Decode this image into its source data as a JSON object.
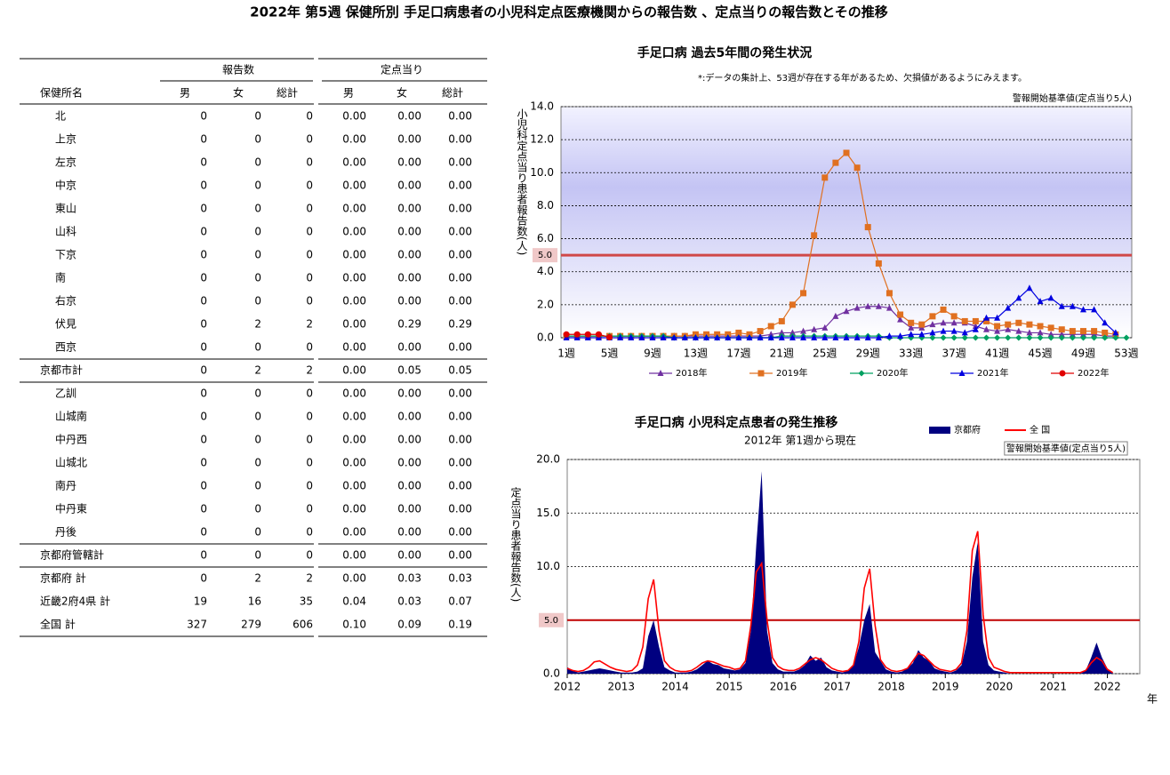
{
  "title": "2022年 第5週 保健所別 手足口病患者の小児科定点医療機関からの報告数 、定点当りの報告数とその推移",
  "table": {
    "header_groups": [
      "報告数",
      "定点当り"
    ],
    "header": [
      "保健所名",
      "男",
      "女",
      "総計",
      "男",
      "女",
      "総計"
    ],
    "city": {
      "rows": [
        [
          "北",
          "0",
          "0",
          "0",
          "0.00",
          "0.00",
          "0.00"
        ],
        [
          "上京",
          "0",
          "0",
          "0",
          "0.00",
          "0.00",
          "0.00"
        ],
        [
          "左京",
          "0",
          "0",
          "0",
          "0.00",
          "0.00",
          "0.00"
        ],
        [
          "中京",
          "0",
          "0",
          "0",
          "0.00",
          "0.00",
          "0.00"
        ],
        [
          "東山",
          "0",
          "0",
          "0",
          "0.00",
          "0.00",
          "0.00"
        ],
        [
          "山科",
          "0",
          "0",
          "0",
          "0.00",
          "0.00",
          "0.00"
        ],
        [
          "下京",
          "0",
          "0",
          "0",
          "0.00",
          "0.00",
          "0.00"
        ],
        [
          "南",
          "0",
          "0",
          "0",
          "0.00",
          "0.00",
          "0.00"
        ],
        [
          "右京",
          "0",
          "0",
          "0",
          "0.00",
          "0.00",
          "0.00"
        ],
        [
          "伏見",
          "0",
          "2",
          "2",
          "0.00",
          "0.29",
          "0.29"
        ],
        [
          "西京",
          "0",
          "0",
          "0",
          "0.00",
          "0.00",
          "0.00"
        ]
      ],
      "total": [
        "京都市計",
        "0",
        "2",
        "2",
        "0.00",
        "0.05",
        "0.05"
      ]
    },
    "prefecture": {
      "rows": [
        [
          "乙訓",
          "0",
          "0",
          "0",
          "0.00",
          "0.00",
          "0.00"
        ],
        [
          "山城南",
          "0",
          "0",
          "0",
          "0.00",
          "0.00",
          "0.00"
        ],
        [
          "中丹西",
          "0",
          "0",
          "0",
          "0.00",
          "0.00",
          "0.00"
        ],
        [
          "山城北",
          "0",
          "0",
          "0",
          "0.00",
          "0.00",
          "0.00"
        ],
        [
          "南丹",
          "0",
          "0",
          "0",
          "0.00",
          "0.00",
          "0.00"
        ],
        [
          "中丹東",
          "0",
          "0",
          "0",
          "0.00",
          "0.00",
          "0.00"
        ],
        [
          "丹後",
          "0",
          "0",
          "0",
          "0.00",
          "0.00",
          "0.00"
        ]
      ],
      "total": [
        "京都府管轄計",
        "0",
        "0",
        "0",
        "0.00",
        "0.00",
        "0.00"
      ]
    },
    "summary": [
      [
        "京都府 計",
        "0",
        "2",
        "2",
        "0.00",
        "0.03",
        "0.03"
      ],
      [
        "近畿2府4県 計",
        "19",
        "16",
        "35",
        "0.04",
        "0.03",
        "0.07"
      ],
      [
        "全国 計",
        "327",
        "279",
        "606",
        "0.10",
        "0.09",
        "0.19"
      ]
    ]
  },
  "chart_data": [
    {
      "type": "line",
      "title": "手足口病 過去5年間の発生状況",
      "note": "*:データの集計上、53週が存在する年があるため、欠損値があるようにみえます。",
      "threshold_note": "警報開始基準値(定点当り5人)",
      "threshold": {
        "value": 5,
        "label": "5.0"
      },
      "y_label": "小児科定点当り患者報告数(人)",
      "categories": [
        "1週",
        null,
        null,
        null,
        "5週",
        null,
        null,
        null,
        "9週",
        null,
        null,
        null,
        "13週",
        null,
        null,
        null,
        "17週",
        null,
        null,
        null,
        "21週",
        null,
        null,
        null,
        "25週",
        null,
        null,
        null,
        "29週",
        null,
        null,
        null,
        "33週",
        null,
        null,
        null,
        "37週",
        null,
        null,
        null,
        "41週",
        null,
        null,
        null,
        "45週",
        null,
        null,
        null,
        "49週",
        null,
        null,
        null,
        "53週"
      ],
      "ylim": [
        0,
        14
      ],
      "yticks": [
        {
          "value": 0,
          "label": "0.0"
        },
        {
          "value": 2,
          "label": "2.0"
        },
        {
          "value": 4,
          "label": "4.0"
        },
        {
          "value": 6,
          "label": "6.0"
        },
        {
          "value": 8,
          "label": "8.0"
        },
        {
          "value": 10,
          "label": "10.0"
        },
        {
          "value": 12,
          "label": "12.0"
        },
        {
          "value": 14,
          "label": "14.0"
        }
      ],
      "grid": true,
      "legend": "bottom",
      "series": [
        {
          "name": "2018年",
          "color": "#7030a0",
          "marker": "triangle",
          "values": [
            0.1,
            0.1,
            0.1,
            0.1,
            0.1,
            0.1,
            0.1,
            0.1,
            0.1,
            0.1,
            0.1,
            0.1,
            0.1,
            0.1,
            0.1,
            0.1,
            0.1,
            0.1,
            0.1,
            0.2,
            0.3,
            0.3,
            0.4,
            0.5,
            0.6,
            1.3,
            1.6,
            1.8,
            1.9,
            1.9,
            1.8,
            1.1,
            0.6,
            0.6,
            0.8,
            0.9,
            0.9,
            0.9,
            0.7,
            0.5,
            0.4,
            0.5,
            0.4,
            0.3,
            0.3,
            0.2,
            0.2,
            0.2,
            0.2,
            0.2,
            0.1,
            0.1,
            null
          ]
        },
        {
          "name": "2019年",
          "color": "#e07020",
          "marker": "square",
          "values": [
            0.1,
            0.1,
            0.1,
            0.1,
            0.1,
            0.1,
            0.1,
            0.1,
            0.1,
            0.1,
            0.1,
            0.1,
            0.2,
            0.2,
            0.2,
            0.2,
            0.3,
            0.2,
            0.4,
            0.7,
            1.0,
            2.0,
            2.7,
            6.2,
            9.7,
            10.6,
            11.2,
            10.3,
            6.7,
            4.5,
            2.7,
            1.4,
            0.9,
            0.8,
            1.3,
            1.7,
            1.3,
            1.0,
            1.0,
            1.0,
            0.7,
            0.8,
            0.9,
            0.8,
            0.7,
            0.6,
            0.5,
            0.4,
            0.4,
            0.4,
            0.3,
            0.2,
            null
          ]
        },
        {
          "name": "2020年",
          "color": "#00a060",
          "marker": "diamond",
          "values": [
            0.1,
            0.1,
            0.1,
            0.1,
            0.1,
            0.1,
            0.1,
            0.1,
            0.1,
            0.1,
            0,
            0,
            0,
            0,
            0,
            0,
            0,
            0,
            0,
            0,
            0.1,
            0.1,
            0.1,
            0.1,
            0.1,
            0.1,
            0.1,
            0.1,
            0.1,
            0.1,
            0,
            0,
            0,
            0,
            0,
            0,
            0,
            0,
            0,
            0,
            0,
            0,
            0,
            0,
            0,
            0,
            0,
            0,
            0,
            0,
            0,
            0,
            0
          ]
        },
        {
          "name": "2021年",
          "color": "#0000e0",
          "marker": "triangle",
          "values": [
            0,
            0,
            0,
            0,
            0,
            0,
            0,
            0,
            0,
            0,
            0,
            0,
            0,
            0,
            0,
            0,
            0,
            0,
            0,
            0,
            0,
            0,
            0,
            0,
            0,
            0,
            0,
            0,
            0,
            0,
            0.1,
            0.1,
            0.2,
            0.2,
            0.3,
            0.4,
            0.4,
            0.3,
            0.5,
            1.2,
            1.2,
            1.8,
            2.4,
            3.0,
            2.2,
            2.4,
            1.9,
            1.9,
            1.7,
            1.7,
            0.9,
            0.3,
            null
          ]
        },
        {
          "name": "2022年",
          "color": "#e00000",
          "marker": "circle",
          "values": [
            0.2,
            0.2,
            0.2,
            0.2,
            0.03,
            null,
            null,
            null,
            null,
            null,
            null,
            null,
            null,
            null,
            null,
            null,
            null,
            null,
            null,
            null,
            null,
            null,
            null,
            null,
            null,
            null,
            null,
            null,
            null,
            null,
            null,
            null,
            null,
            null,
            null,
            null,
            null,
            null,
            null,
            null,
            null,
            null,
            null,
            null,
            null,
            null,
            null,
            null,
            null,
            null,
            null,
            null,
            null
          ]
        }
      ]
    },
    {
      "type": "line",
      "title": "手足口病 小児科定点患者の発生推移",
      "subtitle": "2012年 第1週から現在",
      "threshold_note": "警報開始基準値(定点当り5人)",
      "threshold": {
        "value": 5,
        "label": "5.0"
      },
      "y_label": "定点当り患者報告数(人)",
      "x_label": "年",
      "x": [
        2012,
        2012.1,
        2012.2,
        2012.3,
        2012.4,
        2012.5,
        2012.6,
        2012.7,
        2012.8,
        2012.9,
        2013,
        2013.1,
        2013.2,
        2013.3,
        2013.4,
        2013.5,
        2013.6,
        2013.7,
        2013.8,
        2013.9,
        2014,
        2014.1,
        2014.2,
        2014.3,
        2014.4,
        2014.5,
        2014.6,
        2014.7,
        2014.8,
        2014.9,
        2015,
        2015.1,
        2015.2,
        2015.3,
        2015.4,
        2015.5,
        2015.6,
        2015.7,
        2015.8,
        2015.9,
        2016,
        2016.1,
        2016.2,
        2016.3,
        2016.4,
        2016.5,
        2016.6,
        2016.7,
        2016.8,
        2016.9,
        2017,
        2017.1,
        2017.2,
        2017.3,
        2017.4,
        2017.5,
        2017.6,
        2017.7,
        2017.8,
        2017.9,
        2018,
        2018.1,
        2018.2,
        2018.3,
        2018.4,
        2018.5,
        2018.6,
        2018.7,
        2018.8,
        2018.9,
        2019,
        2019.1,
        2019.2,
        2019.3,
        2019.4,
        2019.5,
        2019.6,
        2019.7,
        2019.8,
        2019.9,
        2020,
        2020.1,
        2020.2,
        2020.3,
        2020.4,
        2020.5,
        2020.6,
        2020.7,
        2020.8,
        2020.9,
        2021,
        2021.1,
        2021.2,
        2021.3,
        2021.4,
        2021.5,
        2021.6,
        2021.7,
        2021.8,
        2021.9,
        2022,
        2022.1
      ],
      "xlim": [
        2012,
        2022.6
      ],
      "xticks": [
        2012,
        2013,
        2014,
        2015,
        2016,
        2017,
        2018,
        2019,
        2020,
        2021,
        2022
      ],
      "ylim": [
        0,
        20
      ],
      "yticks": [
        {
          "value": 0,
          "label": "0.0"
        },
        {
          "value": 5,
          "label": "5.0"
        },
        {
          "value": 10,
          "label": "10.0"
        },
        {
          "value": 15,
          "label": "15.0"
        },
        {
          "value": 20,
          "label": "20.0"
        }
      ],
      "grid": true,
      "legend": "top-right",
      "series": [
        {
          "name": "京都府",
          "color": "#000080",
          "kind": "area",
          "values": [
            0.6,
            0.3,
            0.1,
            0.2,
            0.3,
            0.4,
            0.5,
            0.4,
            0.3,
            0.2,
            0.1,
            0.1,
            0.1,
            0.2,
            0.5,
            3.5,
            5.0,
            2.5,
            0.6,
            0.3,
            0.1,
            0.1,
            0.1,
            0.2,
            0.4,
            0.8,
            1.2,
            0.9,
            0.8,
            0.5,
            0.4,
            0.3,
            0.4,
            1.0,
            4.0,
            12.0,
            18.9,
            4.0,
            1.0,
            0.4,
            0.2,
            0.2,
            0.2,
            0.4,
            0.8,
            1.7,
            1.2,
            1.5,
            0.6,
            0.3,
            0.2,
            0.1,
            0.3,
            0.8,
            2.5,
            5.0,
            6.5,
            2.0,
            1.2,
            0.4,
            0.2,
            0.1,
            0.2,
            0.5,
            1.0,
            2.2,
            1.5,
            1.2,
            0.5,
            0.3,
            0.2,
            0.1,
            0.3,
            0.8,
            3.0,
            9.0,
            12.3,
            3.0,
            0.8,
            0.3,
            0.2,
            0.1,
            0,
            0,
            0,
            0,
            0,
            0,
            0,
            0,
            0,
            0,
            0,
            0,
            0,
            0,
            0.3,
            1.5,
            2.9,
            1.5,
            0.5,
            0.1
          ]
        },
        {
          "name": "全 国",
          "color": "#ff0000",
          "kind": "line",
          "values": [
            0.5,
            0.3,
            0.2,
            0.3,
            0.6,
            1.1,
            1.2,
            0.9,
            0.6,
            0.4,
            0.3,
            0.2,
            0.3,
            0.8,
            2.5,
            7.0,
            8.8,
            4.0,
            1.2,
            0.6,
            0.3,
            0.2,
            0.2,
            0.3,
            0.6,
            1.0,
            1.2,
            1.1,
            0.9,
            0.7,
            0.6,
            0.4,
            0.5,
            1.2,
            4.5,
            9.5,
            10.3,
            5.0,
            1.5,
            0.7,
            0.4,
            0.3,
            0.3,
            0.5,
            0.9,
            1.3,
            1.5,
            1.3,
            0.9,
            0.5,
            0.3,
            0.2,
            0.3,
            0.8,
            3.0,
            8.0,
            9.8,
            4.5,
            1.3,
            0.6,
            0.3,
            0.2,
            0.3,
            0.5,
            1.2,
            1.9,
            1.7,
            1.2,
            0.7,
            0.4,
            0.3,
            0.2,
            0.4,
            1.0,
            4.0,
            11.5,
            13.3,
            5.5,
            1.5,
            0.6,
            0.4,
            0.2,
            0.1,
            0.1,
            0.1,
            0.1,
            0.1,
            0.1,
            0.1,
            0.1,
            0.1,
            0.1,
            0.1,
            0.1,
            0.1,
            0.1,
            0.3,
            1.0,
            1.5,
            1.2,
            0.4,
            0.1
          ]
        }
      ]
    }
  ]
}
